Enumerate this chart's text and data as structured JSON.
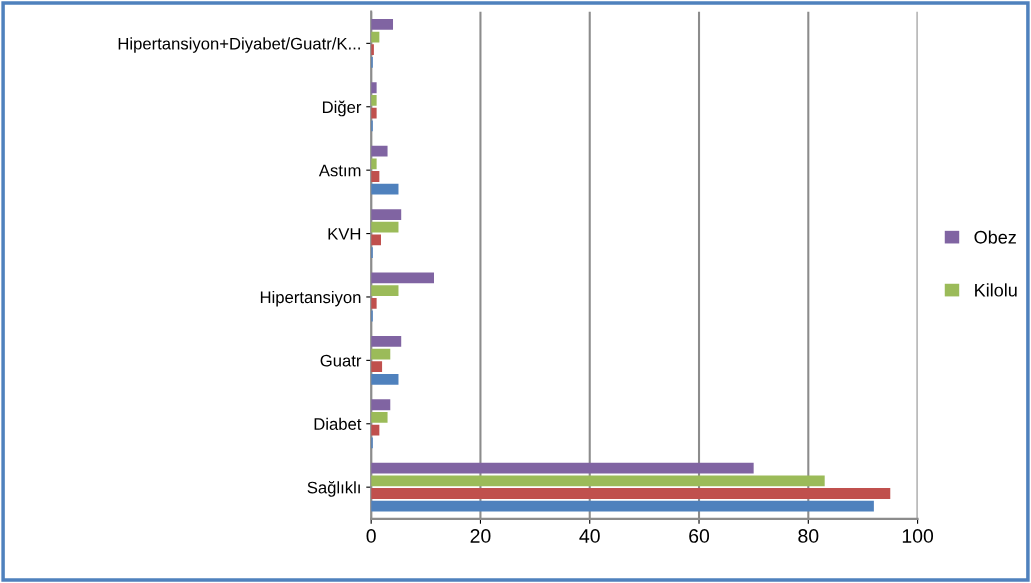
{
  "chart_data": {
    "type": "bar",
    "orientation": "horizontal",
    "categories": [
      "Hipertansiyon+Diyabet/Guatr/K...",
      "Diğer",
      "Astım",
      "KVH",
      "Hipertansiyon",
      "Guatr",
      "Diabet",
      "Sağlıklı"
    ],
    "series": [
      {
        "color": "#4f81bd",
        "values": [
          0.3,
          0.3,
          5,
          0.3,
          0.3,
          5,
          0.3,
          92
        ]
      },
      {
        "color": "#c0504d",
        "values": [
          0.5,
          1,
          1.5,
          1.8,
          1,
          2,
          1.5,
          95
        ]
      },
      {
        "name": "Kilolu",
        "color": "#9bbb59",
        "values": [
          1.5,
          1,
          1,
          5,
          5,
          3.5,
          3,
          83
        ]
      },
      {
        "name": "Obez",
        "color": "#8064a2",
        "values": [
          4,
          1,
          3,
          5.5,
          11.5,
          5.5,
          3.5,
          70
        ]
      }
    ],
    "xlim": [
      0,
      100
    ],
    "xticks": [
      0,
      20,
      40,
      60,
      80,
      100
    ],
    "grid": "x",
    "legend": "right"
  }
}
